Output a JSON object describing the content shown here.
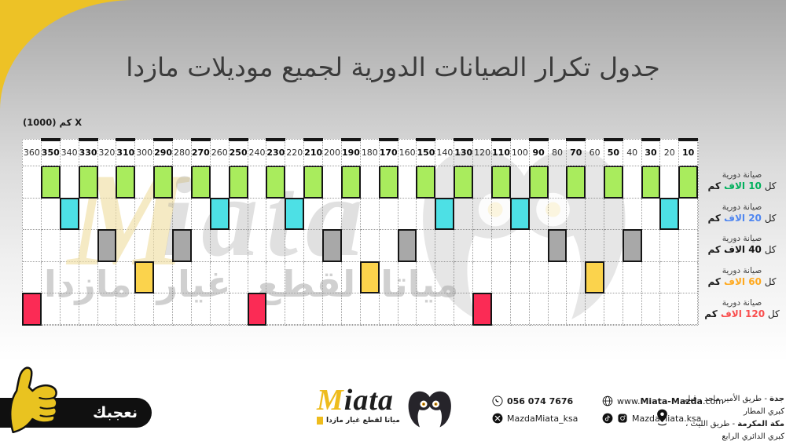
{
  "title": "جدول تكرار الصيانات الدورية لجميع موديلات مازدا",
  "axis_label": "كم (1000) X",
  "chart_data": {
    "type": "table",
    "x_unit": "×1000 km",
    "columns": [
      360,
      350,
      340,
      330,
      320,
      310,
      300,
      290,
      280,
      270,
      260,
      250,
      240,
      230,
      220,
      210,
      200,
      190,
      180,
      170,
      160,
      150,
      140,
      130,
      120,
      110,
      100,
      90,
      80,
      70,
      60,
      50,
      40,
      30,
      20,
      10
    ],
    "rows": [
      {
        "interval_km_thousands": 10,
        "label": "صيانة دورية كل 10 الاف كم",
        "block_color": "#a9ec5d"
      },
      {
        "interval_km_thousands": 20,
        "label": "صيانة دورية كل 20 الاف كم",
        "block_color": "#4de0e5"
      },
      {
        "interval_km_thousands": 40,
        "label": "صيانة دورية كل 40 الاف كم",
        "block_color": "#a8a8a8"
      },
      {
        "interval_km_thousands": 60,
        "label": "صيانة دورية كل 60 الاف كم",
        "block_color": "#fbd34c"
      },
      {
        "interval_km_thousands": 120,
        "label": "صيانة دورية كل 120 الاف كم",
        "block_color": "#fb2b55"
      }
    ],
    "rule": "each mileage column gets one block in the row of the largest service interval that divides it; bold header values (odd tens) carry a black top tick"
  },
  "row_labels": [
    {
      "line1": "صيانة دورية",
      "prefix": "كل",
      "value": "10 الاف",
      "suffix": "كم",
      "value_color": "#00b05c"
    },
    {
      "line1": "صيانة دورية",
      "prefix": "كل",
      "value": "20 الاف",
      "suffix": "كم",
      "value_color": "#4f86f0"
    },
    {
      "line1": "صيانة دورية",
      "prefix": "كل",
      "value": "40 الاف",
      "suffix": "كم",
      "value_color": "#141414"
    },
    {
      "line1": "صيانة دورية",
      "prefix": "كل",
      "value": "60 الاف",
      "suffix": "كم",
      "value_color": "#ffa91e"
    },
    {
      "line1": "صيانة دورية",
      "prefix": "كل",
      "value": "120 الاف",
      "suffix": "كم",
      "value_color": "#f94e4e"
    }
  ],
  "watermark": {
    "m": "M",
    "script": "iata",
    "tagline": "مياتا لقطع غيار مازدا"
  },
  "ribbon": {
    "label": "نعجبك"
  },
  "footer": {
    "logo": {
      "m": "M",
      "rest": "iata",
      "tagline": "مياتا لقطع غيار مازدا"
    },
    "contact": {
      "phone": "056 074 7676",
      "website_pre": "www.",
      "website_bold": "Miata-Mazda",
      "website_post": ".com",
      "x_handle": "MazdaMiata_ksa",
      "social_handle": "MazdaMiata.ksa"
    },
    "address": [
      {
        "city": "جدة",
        "details": " - طريق الأمير ماجد ، قبل كبري المطار"
      },
      {
        "city": "مكة المكرمة",
        "details": " - طريق الليث ، كبري الدائري الرابع"
      }
    ]
  },
  "colors": {
    "accent_yellow": "#edc226",
    "block_border": "#151515",
    "pill_black": "#101010"
  }
}
